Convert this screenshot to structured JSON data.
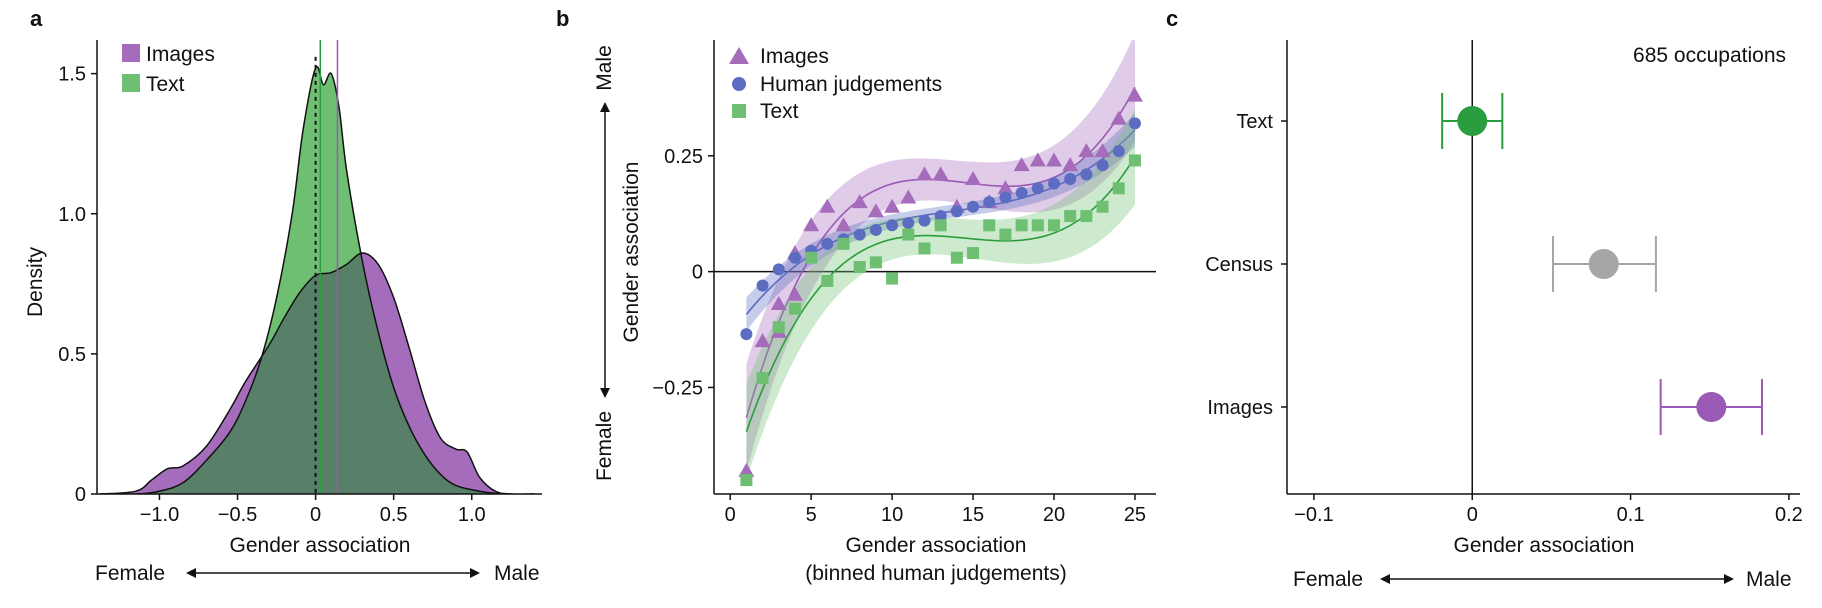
{
  "colors": {
    "images": "#9b59b6",
    "images_fill": "#a56cbc",
    "text": "#2a9d3e",
    "text_fill": "#6fbf73",
    "overlap_fill": "#587f67",
    "human": "#5b6cc1",
    "census": "#a6a6a6",
    "axis": "#111111"
  },
  "chart_data": [
    {
      "panel": "a",
      "type": "area",
      "title": "",
      "xlabel": "Gender association",
      "ylabel": "Density",
      "xticks": [
        "−1.0",
        "−0.5",
        "0",
        "0.5",
        "1.0"
      ],
      "yticks": [
        "0",
        "0.5",
        "1.0",
        "1.5"
      ],
      "xlim": [
        -1.4,
        1.45
      ],
      "ylim": [
        0,
        1.62
      ],
      "direction_left": "Female",
      "direction_right": "Male",
      "legend": [
        "Images",
        "Text"
      ],
      "legend_position": "top-left",
      "mean_lines": {
        "zero": 0,
        "text": 0.03,
        "images": 0.14
      },
      "series": [
        {
          "name": "Images",
          "x": [
            -1.38,
            -1.15,
            -1.05,
            -0.95,
            -0.85,
            -0.7,
            -0.55,
            -0.45,
            -0.3,
            -0.2,
            -0.1,
            0.0,
            0.1,
            0.2,
            0.3,
            0.4,
            0.5,
            0.6,
            0.7,
            0.8,
            0.9,
            0.97,
            1.05,
            1.15,
            1.25,
            1.4
          ],
          "values": [
            0.0,
            0.01,
            0.05,
            0.09,
            0.1,
            0.17,
            0.3,
            0.4,
            0.53,
            0.63,
            0.72,
            0.78,
            0.79,
            0.82,
            0.86,
            0.82,
            0.7,
            0.52,
            0.33,
            0.2,
            0.16,
            0.15,
            0.06,
            0.01,
            0.0,
            0.0
          ]
        },
        {
          "name": "Text",
          "x": [
            -1.38,
            -1.15,
            -1.0,
            -0.85,
            -0.7,
            -0.55,
            -0.45,
            -0.35,
            -0.25,
            -0.15,
            -0.08,
            0.0,
            0.05,
            0.1,
            0.15,
            0.2,
            0.3,
            0.4,
            0.5,
            0.6,
            0.7,
            0.8,
            0.9,
            1.05,
            1.2,
            1.4
          ],
          "values": [
            0.0,
            0.0,
            0.01,
            0.04,
            0.12,
            0.22,
            0.33,
            0.48,
            0.7,
            1.0,
            1.3,
            1.52,
            1.46,
            1.5,
            1.38,
            1.15,
            0.83,
            0.58,
            0.38,
            0.24,
            0.14,
            0.07,
            0.03,
            0.01,
            0.0,
            0.0
          ]
        }
      ]
    },
    {
      "panel": "b",
      "type": "scatter",
      "title": "",
      "xlabel": "Gender association",
      "xlabel_line2": "(binned human judgements)",
      "ylabel": "Gender association",
      "xticks": [
        "0",
        "5",
        "10",
        "15",
        "20",
        "25"
      ],
      "yticks": [
        "−0.25",
        "0",
        "0.25"
      ],
      "xlim": [
        -1,
        26.3
      ],
      "ylim": [
        -0.48,
        0.5
      ],
      "direction_bottom": "Female",
      "direction_top": "Male",
      "legend": [
        "Images",
        "Human judgements",
        "Text"
      ],
      "legend_position": "top-left",
      "series": [
        {
          "name": "Images",
          "marker": "triangle",
          "x": [
            1,
            2,
            3,
            3,
            4,
            4,
            5,
            6,
            7,
            8,
            9,
            10,
            11,
            12,
            13,
            14,
            15,
            16,
            17,
            18,
            19,
            20,
            21,
            22,
            23,
            24,
            25
          ],
          "values": [
            -0.43,
            -0.15,
            -0.07,
            -0.13,
            -0.05,
            0.04,
            0.1,
            0.14,
            0.1,
            0.15,
            0.13,
            0.14,
            0.16,
            0.21,
            0.21,
            0.14,
            0.2,
            0.15,
            0.18,
            0.23,
            0.24,
            0.24,
            0.23,
            0.26,
            0.26,
            0.33,
            0.38
          ]
        },
        {
          "name": "Human judgements",
          "marker": "circle",
          "x": [
            1,
            2,
            3,
            4,
            5,
            6,
            7,
            8,
            9,
            10,
            11,
            12,
            13,
            14,
            15,
            16,
            17,
            18,
            19,
            20,
            21,
            22,
            23,
            24,
            25
          ],
          "values": [
            -0.135,
            -0.03,
            0.005,
            0.03,
            0.045,
            0.06,
            0.07,
            0.08,
            0.09,
            0.1,
            0.105,
            0.11,
            0.12,
            0.13,
            0.14,
            0.15,
            0.16,
            0.17,
            0.18,
            0.19,
            0.2,
            0.21,
            0.23,
            0.26,
            0.32
          ]
        },
        {
          "name": "Text",
          "marker": "square",
          "x": [
            1,
            2,
            3,
            4,
            5,
            6,
            7,
            8,
            9,
            10,
            11,
            12,
            13,
            14,
            15,
            16,
            17,
            18,
            19,
            20,
            21,
            22,
            23,
            24,
            25
          ],
          "values": [
            -0.45,
            -0.23,
            -0.12,
            -0.08,
            0.03,
            -0.02,
            0.06,
            0.01,
            0.02,
            -0.015,
            0.08,
            0.05,
            0.1,
            0.03,
            0.04,
            0.1,
            0.08,
            0.1,
            0.1,
            0.1,
            0.12,
            0.12,
            0.14,
            0.18,
            0.24
          ]
        }
      ]
    },
    {
      "panel": "c",
      "type": "scatter",
      "title": "",
      "annotation": "685 occupations",
      "xlabel": "Gender association",
      "xticks": [
        "−0.1",
        "0",
        "0.1",
        "0.2"
      ],
      "xlim": [
        -0.117,
        0.207
      ],
      "direction_left": "Female",
      "direction_right": "Male",
      "categories": [
        "Text",
        "Census",
        "Images"
      ],
      "values": [
        0.0,
        0.083,
        0.151
      ],
      "ci_low": [
        -0.019,
        0.051,
        0.119
      ],
      "ci_high": [
        0.019,
        0.116,
        0.183
      ]
    }
  ]
}
